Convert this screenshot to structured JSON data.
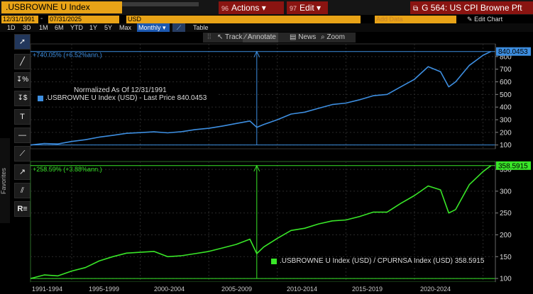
{
  "header": {
    "ticker": ".USBROWNE U Index",
    "actions_key": "96",
    "actions_label": "Actions",
    "edit_key": "97",
    "edit_label": "Edit",
    "graph_title": "G 564: US CPI Browne Pft"
  },
  "controls": {
    "start_date": "12/31/1991",
    "end_date": "07/31/2025",
    "currency": "USD",
    "add_data_placeholder": "Add Data",
    "edit_chart_label": "Edit Chart"
  },
  "periods": [
    "1D",
    "3D",
    "1M",
    "6M",
    "YTD",
    "1Y",
    "5Y",
    "Max"
  ],
  "frequency": "Monthly",
  "table_label": "Table",
  "annotation_toolbar": {
    "track": "Track",
    "annotate": "Annotate",
    "news": "News",
    "zoom": "Zoom"
  },
  "sidebar": {
    "favorites_label": "Favorites"
  },
  "chart_data": [
    {
      "type": "line",
      "name": "top-panel",
      "series": [
        {
          "name": ".USBROWNE U Index (USD) - Last Price 840.0453",
          "color": "#3d8ee0",
          "x": [
            1992,
            1993,
            1994,
            1995,
            1996,
            1997,
            1998,
            1999,
            2000,
            2001,
            2002,
            2003,
            2004,
            2005,
            2006,
            2007,
            2008,
            2008.5,
            2009,
            2010,
            2011,
            2012,
            2013,
            2014,
            2015,
            2016,
            2017,
            2018,
            2019,
            2020,
            2021,
            2021.9,
            2022.5,
            2023,
            2024,
            2025,
            2025.58
          ],
          "values": [
            100,
            112,
            108,
            128,
            142,
            162,
            176,
            192,
            198,
            204,
            196,
            205,
            222,
            232,
            250,
            270,
            290,
            240,
            262,
            300,
            345,
            360,
            390,
            420,
            432,
            458,
            490,
            500,
            560,
            620,
            720,
            680,
            560,
            600,
            730,
            810,
            840
          ]
        }
      ],
      "ylim": [
        70,
        900
      ],
      "yticks": [
        100,
        200,
        300,
        400,
        500,
        600,
        700,
        800
      ],
      "last_value": "840.0453",
      "annotation": "+740.05% (+6.52%ann.)",
      "legend_title": "Normalized As Of 12/31/1991",
      "legend_entry": ".USBROWNE U Index (USD) - Last Price 840.0453"
    },
    {
      "type": "line",
      "name": "bottom-panel",
      "series": [
        {
          "name": ".USBROWNE U Index (USD) / CPURNSA Index (USD) 358.5915",
          "color": "#39e628",
          "x": [
            1992,
            1993,
            1994,
            1995,
            1996,
            1997,
            1998,
            1999,
            2000,
            2001,
            2002,
            2003,
            2004,
            2005,
            2006,
            2007,
            2008,
            2008.5,
            2009,
            2010,
            2011,
            2012,
            2013,
            2014,
            2015,
            2016,
            2017,
            2018,
            2019,
            2020,
            2021,
            2021.9,
            2022.5,
            2023,
            2024,
            2025,
            2025.58
          ],
          "values": [
            100,
            108,
            106,
            117,
            125,
            140,
            150,
            158,
            160,
            162,
            150,
            152,
            157,
            162,
            170,
            178,
            190,
            157,
            172,
            192,
            210,
            215,
            225,
            232,
            234,
            242,
            252,
            252,
            272,
            290,
            312,
            303,
            250,
            258,
            315,
            345,
            358.6
          ]
        }
      ],
      "ylim": [
        92,
        368
      ],
      "yticks": [
        100,
        150,
        200,
        250,
        300,
        350
      ],
      "last_value": "358.5915",
      "annotation": "+258.59% (+3.88%ann.)",
      "legend_entry": ".USBROWNE U Index (USD) / CPURNSA Index (USD) 358.5915"
    }
  ],
  "x_axis": {
    "labels": [
      "1991-1994",
      "1995-1999",
      "2000-2004",
      "2005-2009",
      "2010-2014",
      "2015-2019",
      "2020-2024"
    ],
    "range": [
      1992,
      2025.9
    ]
  }
}
